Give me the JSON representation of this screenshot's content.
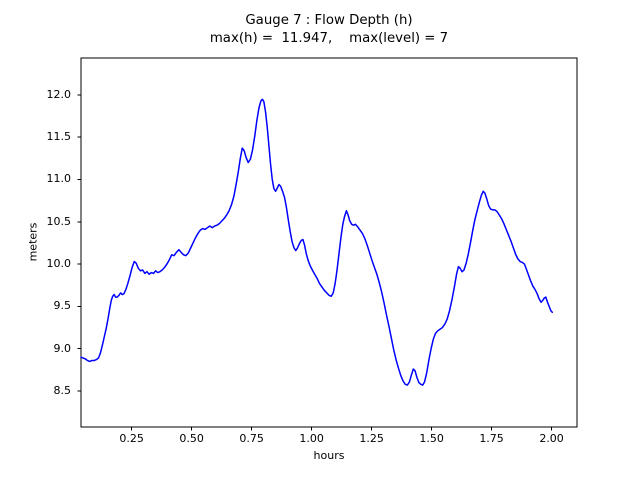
{
  "figure": {
    "background": "#ffffff",
    "text_color": "#000000",
    "spine_color": "#000000"
  },
  "chart_data": {
    "type": "line",
    "title": "Gauge 7 : Flow Depth (h)",
    "subtitle": "max(h) =  11.947,    max(level) = 7",
    "xlabel": "hours",
    "ylabel": "meters",
    "stats": {
      "max_h": "11.947",
      "max_level": "7"
    },
    "grid": false,
    "legend": null,
    "xlim": [
      0.039,
      2.106
    ],
    "ylim": [
      8.075,
      12.435
    ],
    "x_ticks": [
      0.25,
      0.5,
      0.75,
      1.0,
      1.25,
      1.5,
      1.75,
      2.0
    ],
    "x_tick_labels": [
      "0.25",
      "0.50",
      "0.75",
      "1.00",
      "1.25",
      "1.50",
      "1.75",
      "2.00"
    ],
    "y_ticks": [
      8.5,
      9.0,
      9.5,
      10.0,
      10.5,
      11.0,
      11.5,
      12.0
    ],
    "y_tick_labels": [
      "8.5",
      "9.0",
      "9.5",
      "10.0",
      "10.5",
      "11.0",
      "11.5",
      "12.0"
    ],
    "series": [
      {
        "name": "flow-depth-h",
        "color": "#0000ff",
        "points": [
          [
            0.039,
            8.9
          ],
          [
            0.048,
            8.89
          ],
          [
            0.057,
            8.88
          ],
          [
            0.066,
            8.86
          ],
          [
            0.075,
            8.85
          ],
          [
            0.084,
            8.86
          ],
          [
            0.093,
            8.86
          ],
          [
            0.102,
            8.87
          ],
          [
            0.112,
            8.89
          ],
          [
            0.12,
            8.95
          ],
          [
            0.128,
            9.04
          ],
          [
            0.136,
            9.14
          ],
          [
            0.144,
            9.24
          ],
          [
            0.152,
            9.36
          ],
          [
            0.159,
            9.48
          ],
          [
            0.165,
            9.57
          ],
          [
            0.171,
            9.62
          ],
          [
            0.177,
            9.64
          ],
          [
            0.183,
            9.61
          ],
          [
            0.19,
            9.61
          ],
          [
            0.197,
            9.63
          ],
          [
            0.204,
            9.66
          ],
          [
            0.211,
            9.64
          ],
          [
            0.218,
            9.65
          ],
          [
            0.226,
            9.7
          ],
          [
            0.234,
            9.77
          ],
          [
            0.243,
            9.86
          ],
          [
            0.252,
            9.96
          ],
          [
            0.261,
            10.03
          ],
          [
            0.269,
            10.01
          ],
          [
            0.278,
            9.95
          ],
          [
            0.287,
            9.92
          ],
          [
            0.296,
            9.93
          ],
          [
            0.305,
            9.89
          ],
          [
            0.314,
            9.91
          ],
          [
            0.323,
            9.88
          ],
          [
            0.332,
            9.9
          ],
          [
            0.341,
            9.89
          ],
          [
            0.35,
            9.92
          ],
          [
            0.359,
            9.9
          ],
          [
            0.368,
            9.91
          ],
          [
            0.377,
            9.93
          ],
          [
            0.387,
            9.96
          ],
          [
            0.397,
            10.0
          ],
          [
            0.407,
            10.05
          ],
          [
            0.417,
            10.11
          ],
          [
            0.427,
            10.1
          ],
          [
            0.437,
            10.14
          ],
          [
            0.447,
            10.17
          ],
          [
            0.456,
            10.14
          ],
          [
            0.466,
            10.11
          ],
          [
            0.476,
            10.1
          ],
          [
            0.486,
            10.13
          ],
          [
            0.496,
            10.19
          ],
          [
            0.506,
            10.25
          ],
          [
            0.516,
            10.31
          ],
          [
            0.526,
            10.36
          ],
          [
            0.536,
            10.4
          ],
          [
            0.546,
            10.42
          ],
          [
            0.556,
            10.41
          ],
          [
            0.566,
            10.43
          ],
          [
            0.576,
            10.45
          ],
          [
            0.586,
            10.43
          ],
          [
            0.596,
            10.45
          ],
          [
            0.606,
            10.46
          ],
          [
            0.616,
            10.48
          ],
          [
            0.626,
            10.51
          ],
          [
            0.636,
            10.54
          ],
          [
            0.646,
            10.58
          ],
          [
            0.656,
            10.63
          ],
          [
            0.666,
            10.7
          ],
          [
            0.676,
            10.8
          ],
          [
            0.686,
            10.95
          ],
          [
            0.695,
            11.1
          ],
          [
            0.703,
            11.25
          ],
          [
            0.711,
            11.37
          ],
          [
            0.719,
            11.34
          ],
          [
            0.727,
            11.26
          ],
          [
            0.736,
            11.2
          ],
          [
            0.745,
            11.24
          ],
          [
            0.754,
            11.35
          ],
          [
            0.763,
            11.51
          ],
          [
            0.772,
            11.7
          ],
          [
            0.781,
            11.85
          ],
          [
            0.789,
            11.93
          ],
          [
            0.795,
            11.947
          ],
          [
            0.801,
            11.92
          ],
          [
            0.808,
            11.8
          ],
          [
            0.815,
            11.62
          ],
          [
            0.822,
            11.4
          ],
          [
            0.829,
            11.18
          ],
          [
            0.836,
            11.0
          ],
          [
            0.843,
            10.89
          ],
          [
            0.85,
            10.86
          ],
          [
            0.857,
            10.9
          ],
          [
            0.864,
            10.94
          ],
          [
            0.871,
            10.92
          ],
          [
            0.879,
            10.86
          ],
          [
            0.887,
            10.79
          ],
          [
            0.895,
            10.67
          ],
          [
            0.903,
            10.52
          ],
          [
            0.911,
            10.38
          ],
          [
            0.919,
            10.26
          ],
          [
            0.927,
            10.19
          ],
          [
            0.934,
            10.16
          ],
          [
            0.941,
            10.19
          ],
          [
            0.949,
            10.24
          ],
          [
            0.957,
            10.28
          ],
          [
            0.964,
            10.29
          ],
          [
            0.971,
            10.22
          ],
          [
            0.978,
            10.12
          ],
          [
            0.986,
            10.04
          ],
          [
            0.994,
            9.98
          ],
          [
            1.003,
            9.93
          ],
          [
            1.013,
            9.88
          ],
          [
            1.023,
            9.83
          ],
          [
            1.033,
            9.77
          ],
          [
            1.043,
            9.73
          ],
          [
            1.053,
            9.69
          ],
          [
            1.063,
            9.66
          ],
          [
            1.073,
            9.63
          ],
          [
            1.082,
            9.62
          ],
          [
            1.09,
            9.66
          ],
          [
            1.098,
            9.77
          ],
          [
            1.106,
            9.93
          ],
          [
            1.114,
            10.12
          ],
          [
            1.122,
            10.31
          ],
          [
            1.13,
            10.47
          ],
          [
            1.138,
            10.57
          ],
          [
            1.145,
            10.63
          ],
          [
            1.152,
            10.58
          ],
          [
            1.159,
            10.51
          ],
          [
            1.167,
            10.47
          ],
          [
            1.175,
            10.46
          ],
          [
            1.183,
            10.47
          ],
          [
            1.192,
            10.44
          ],
          [
            1.202,
            10.4
          ],
          [
            1.212,
            10.36
          ],
          [
            1.222,
            10.3
          ],
          [
            1.232,
            10.22
          ],
          [
            1.242,
            10.13
          ],
          [
            1.252,
            10.04
          ],
          [
            1.262,
            9.96
          ],
          [
            1.272,
            9.88
          ],
          [
            1.282,
            9.78
          ],
          [
            1.292,
            9.67
          ],
          [
            1.302,
            9.54
          ],
          [
            1.312,
            9.4
          ],
          [
            1.322,
            9.27
          ],
          [
            1.332,
            9.13
          ],
          [
            1.342,
            8.99
          ],
          [
            1.352,
            8.87
          ],
          [
            1.362,
            8.77
          ],
          [
            1.372,
            8.68
          ],
          [
            1.381,
            8.62
          ],
          [
            1.39,
            8.58
          ],
          [
            1.399,
            8.57
          ],
          [
            1.408,
            8.61
          ],
          [
            1.417,
            8.7
          ],
          [
            1.424,
            8.76
          ],
          [
            1.431,
            8.74
          ],
          [
            1.439,
            8.66
          ],
          [
            1.447,
            8.6
          ],
          [
            1.455,
            8.58
          ],
          [
            1.463,
            8.57
          ],
          [
            1.471,
            8.61
          ],
          [
            1.48,
            8.72
          ],
          [
            1.489,
            8.87
          ],
          [
            1.498,
            9.0
          ],
          [
            1.507,
            9.11
          ],
          [
            1.516,
            9.18
          ],
          [
            1.525,
            9.21
          ],
          [
            1.535,
            9.23
          ],
          [
            1.545,
            9.25
          ],
          [
            1.555,
            9.29
          ],
          [
            1.565,
            9.35
          ],
          [
            1.575,
            9.45
          ],
          [
            1.585,
            9.58
          ],
          [
            1.595,
            9.73
          ],
          [
            1.604,
            9.88
          ],
          [
            1.612,
            9.97
          ],
          [
            1.619,
            9.95
          ],
          [
            1.627,
            9.91
          ],
          [
            1.635,
            9.93
          ],
          [
            1.644,
            10.01
          ],
          [
            1.653,
            10.12
          ],
          [
            1.662,
            10.25
          ],
          [
            1.671,
            10.39
          ],
          [
            1.68,
            10.52
          ],
          [
            1.689,
            10.62
          ],
          [
            1.698,
            10.72
          ],
          [
            1.707,
            10.81
          ],
          [
            1.715,
            10.86
          ],
          [
            1.722,
            10.84
          ],
          [
            1.73,
            10.77
          ],
          [
            1.738,
            10.69
          ],
          [
            1.746,
            10.65
          ],
          [
            1.755,
            10.64
          ],
          [
            1.764,
            10.64
          ],
          [
            1.773,
            10.62
          ],
          [
            1.782,
            10.58
          ],
          [
            1.791,
            10.54
          ],
          [
            1.801,
            10.48
          ],
          [
            1.811,
            10.41
          ],
          [
            1.821,
            10.34
          ],
          [
            1.831,
            10.27
          ],
          [
            1.841,
            10.19
          ],
          [
            1.851,
            10.11
          ],
          [
            1.86,
            10.06
          ],
          [
            1.869,
            10.03
          ],
          [
            1.878,
            10.02
          ],
          [
            1.887,
            10.0
          ],
          [
            1.895,
            9.94
          ],
          [
            1.904,
            9.87
          ],
          [
            1.913,
            9.8
          ],
          [
            1.922,
            9.74
          ],
          [
            1.931,
            9.7
          ],
          [
            1.94,
            9.65
          ],
          [
            1.948,
            9.59
          ],
          [
            1.956,
            9.55
          ],
          [
            1.963,
            9.57
          ],
          [
            1.97,
            9.6
          ],
          [
            1.976,
            9.61
          ],
          [
            1.983,
            9.55
          ],
          [
            1.99,
            9.5
          ],
          [
            1.997,
            9.45
          ],
          [
            2.003,
            9.43
          ]
        ]
      }
    ]
  }
}
